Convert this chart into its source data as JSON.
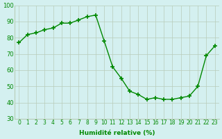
{
  "x": [
    0,
    1,
    2,
    3,
    4,
    5,
    6,
    7,
    8,
    9,
    10,
    11,
    12,
    13,
    14,
    15,
    16,
    17,
    18,
    19,
    20,
    21,
    22,
    23
  ],
  "y": [
    77,
    82,
    83,
    85,
    86,
    89,
    89,
    91,
    93,
    94,
    78,
    62,
    55,
    47,
    45,
    42,
    43,
    42,
    42,
    43,
    44,
    50,
    69,
    75
  ],
  "x_labels": [
    "0",
    "1",
    "2",
    "3",
    "4",
    "5",
    "6",
    "7",
    "8",
    "9",
    "10",
    "11",
    "12",
    "13",
    "14",
    "15",
    "16",
    "17",
    "18",
    "19",
    "20",
    "21",
    "22",
    "23"
  ],
  "ylabel_text": "Humidité relative (%)",
  "ylim": [
    30,
    100
  ],
  "yticks": [
    30,
    40,
    50,
    60,
    70,
    80,
    90,
    100
  ],
  "line_color": "#008800",
  "marker_color": "#008800",
  "bg_color": "#d4f0f0",
  "grid_color": "#b8ccb8",
  "title": ""
}
